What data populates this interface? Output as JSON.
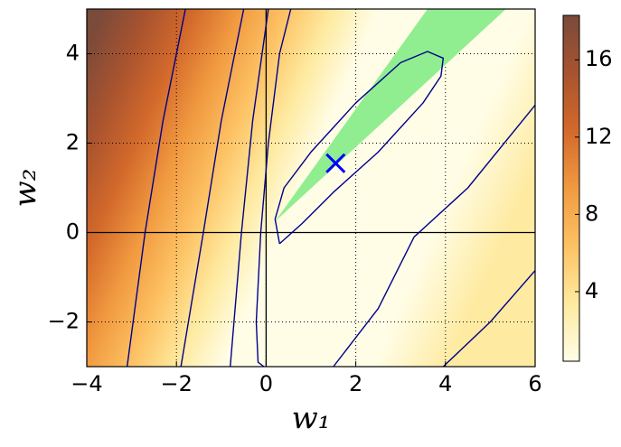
{
  "chart_data": {
    "type": "contour",
    "x_label": "w₁",
    "y_label": "w₂",
    "xlim": [
      -4,
      6
    ],
    "ylim": [
      -3,
      5
    ],
    "xticks": [
      {
        "value": -4,
        "label": "−4"
      },
      {
        "value": -2,
        "label": "−2"
      },
      0,
      2,
      4,
      6
    ],
    "yticks": [
      {
        "value": -2,
        "label": "−2"
      },
      0,
      2,
      4
    ],
    "grid": true,
    "colormap": [
      "#fffde6",
      "#feeaa0",
      "#fdc264",
      "#f19a40",
      "#d3692b",
      "#a8532f",
      "#7a4a3a"
    ],
    "clim": [
      0.4,
      18.3
    ],
    "cticks": [
      4,
      8,
      12,
      16
    ],
    "line_color": "#00008b",
    "contours": [
      {
        "x": [
          0.3,
          0.2,
          0.4,
          1,
          2,
          3,
          3.6,
          3.95,
          3.9,
          3.5,
          2.5,
          1.5,
          0.8,
          0.3
        ],
        "y": [
          -0.25,
          0.3,
          1.0,
          1.8,
          2.9,
          3.8,
          4.05,
          3.9,
          3.5,
          2.9,
          1.8,
          0.9,
          0.2,
          -0.25
        ]
      },
      {
        "x": [
          0.55,
          0.3,
          0.05,
          -0.12,
          -0.22,
          -0.18,
          -0.05
        ],
        "y": [
          5,
          4,
          2,
          0,
          -2,
          -2.9,
          -3
        ]
      },
      {
        "x": [
          1.5,
          2.5,
          3.3,
          4.5,
          6
        ],
        "y": [
          -3,
          -1.7,
          -0.1,
          1.0,
          2.85
        ]
      },
      {
        "x": [
          3.95,
          5,
          6
        ],
        "y": [
          -3,
          -2,
          -0.85
        ]
      },
      {
        "x": [
          -3.1,
          -2.7,
          -2.3,
          -1.8
        ],
        "y": [
          -3,
          0,
          2.5,
          5
        ]
      },
      {
        "x": [
          -1.9,
          -1.4,
          -1.0,
          -0.5
        ],
        "y": [
          -3,
          0,
          2.5,
          5
        ]
      },
      {
        "x": [
          -0.8,
          -0.55,
          -0.3,
          0.05
        ],
        "y": [
          -3,
          0,
          2.5,
          5
        ]
      }
    ],
    "region": {
      "color": "#90ee90",
      "x": [
        0.2,
        3.6,
        5.35
      ],
      "y": [
        0.25,
        5,
        5
      ]
    },
    "marker": {
      "color": "#0000ff",
      "x": 1.55,
      "y": 1.55
    }
  }
}
